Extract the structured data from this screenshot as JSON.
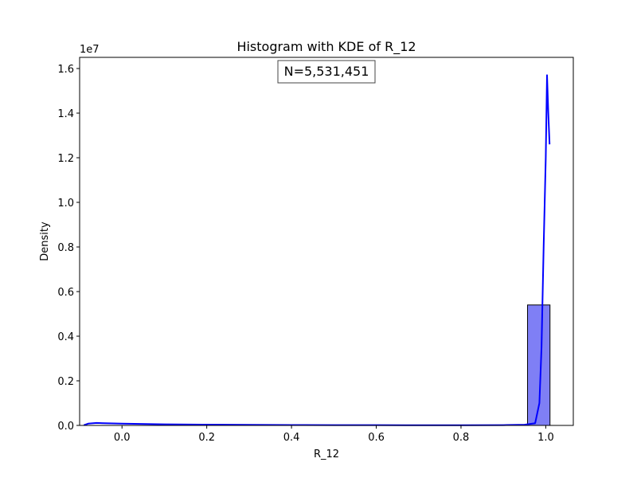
{
  "chart_data": {
    "type": "bar",
    "title": "Histogram with KDE of R_12",
    "xlabel": "R_12",
    "ylabel": "Density",
    "offset_label": "1e7",
    "annotation": "N=5,531,451",
    "xlim": [
      -0.1,
      1.065
    ],
    "ylim": [
      0,
      16500000
    ],
    "xticks": [
      0.0,
      0.2,
      0.4,
      0.6,
      0.8,
      1.0
    ],
    "xtick_labels": [
      "0.0",
      "0.2",
      "0.4",
      "0.6",
      "0.8",
      "1.0"
    ],
    "yticks": [
      0,
      2000000,
      4000000,
      6000000,
      8000000,
      10000000,
      12000000,
      14000000,
      16000000
    ],
    "ytick_labels": [
      "0.0",
      "0.2",
      "0.4",
      "0.6",
      "0.8",
      "1.0",
      "1.2",
      "1.4",
      "1.6"
    ],
    "bars": [
      {
        "x0": 0.957,
        "x1": 1.01,
        "value": 5400000
      }
    ],
    "kde": {
      "name": "KDE",
      "x": [
        -0.09,
        -0.08,
        -0.06,
        -0.04,
        0.0,
        0.1,
        0.2,
        0.3,
        0.4,
        0.5,
        0.6,
        0.7,
        0.8,
        0.9,
        0.95,
        0.975,
        0.985,
        0.99,
        0.995,
        1.0,
        1.003,
        1.006,
        1.009
      ],
      "y": [
        10000,
        80000,
        110000,
        100000,
        80000,
        50000,
        35000,
        25000,
        18000,
        15000,
        12000,
        10000,
        10000,
        15000,
        30000,
        100000,
        1000000,
        3500000,
        8000000,
        12000000,
        15700000,
        14000000,
        12600000
      ]
    },
    "grid": false,
    "colors": {
      "bar_fill": "#7f7ff5",
      "bar_edge": "#000000",
      "kde_line": "#0000ff",
      "axes": "#000000"
    }
  }
}
